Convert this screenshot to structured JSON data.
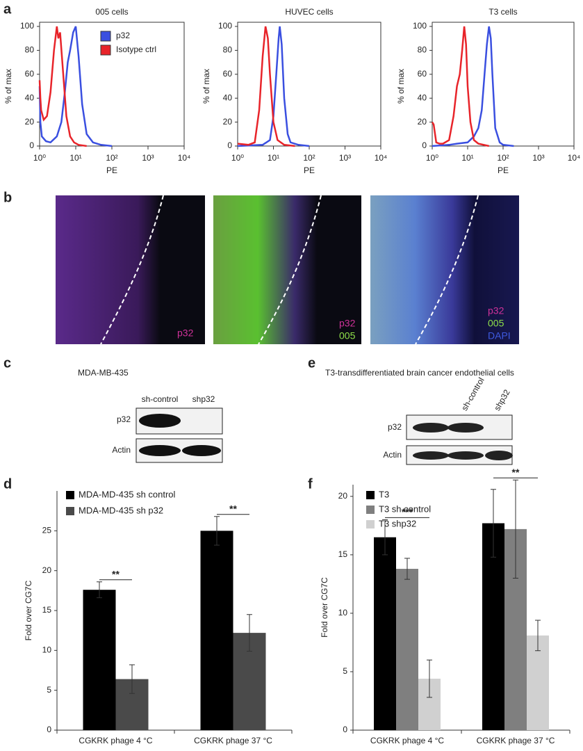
{
  "panel_labels": [
    "a",
    "b",
    "c",
    "d",
    "e",
    "f"
  ],
  "chart_data": [
    {
      "type": "line",
      "title": "005 cells",
      "xlabel": "PE",
      "ylabel": "% of max",
      "xlog": true,
      "xlim": [
        1,
        10000
      ],
      "xticks": [
        {
          "value": 1,
          "label": "10⁰"
        },
        {
          "value": 10,
          "label": "10¹"
        },
        {
          "value": 100,
          "label": "10²"
        },
        {
          "value": 1000,
          "label": "10³"
        },
        {
          "value": 10000,
          "label": "10⁴"
        }
      ],
      "ylim": [
        0,
        100
      ],
      "yticks": [
        0,
        20,
        40,
        60,
        80,
        100
      ],
      "legend": "upper right",
      "series": [
        {
          "name": "p32",
          "color": "#3a4fe0",
          "x": [
            1,
            1.05,
            1.15,
            1.5,
            2,
            3,
            4,
            5,
            6,
            7,
            8.5,
            10,
            12,
            15,
            20,
            30,
            50,
            100
          ],
          "values": [
            50,
            20,
            8,
            4,
            3,
            8,
            20,
            45,
            70,
            80,
            95,
            100,
            75,
            35,
            10,
            3,
            1,
            0
          ]
        },
        {
          "name": "Isotype ctrl",
          "color": "#e8242a",
          "x": [
            1,
            1.05,
            1.1,
            1.3,
            1.6,
            2,
            2.5,
            3,
            3.3,
            3.7,
            4.5,
            5.5,
            7,
            9,
            12,
            20
          ],
          "values": [
            55,
            40,
            30,
            22,
            25,
            45,
            80,
            100,
            90,
            95,
            60,
            25,
            8,
            3,
            1,
            0
          ]
        }
      ]
    },
    {
      "type": "line",
      "title": "HUVEC cells",
      "xlabel": "PE",
      "ylabel": "% of max",
      "xlog": true,
      "xlim": [
        1,
        10000
      ],
      "xticks": [
        {
          "value": 1,
          "label": "10⁰"
        },
        {
          "value": 10,
          "label": "10¹"
        },
        {
          "value": 100,
          "label": "10²"
        },
        {
          "value": 1000,
          "label": "10³"
        },
        {
          "value": 10000,
          "label": "10⁴"
        }
      ],
      "ylim": [
        0,
        100
      ],
      "yticks": [
        0,
        20,
        40,
        60,
        80,
        100
      ],
      "series": [
        {
          "color": "#3a4fe0",
          "x": [
            1,
            5,
            8,
            10,
            12,
            14,
            15,
            17,
            20,
            25,
            30,
            50,
            100
          ],
          "values": [
            0,
            1,
            5,
            25,
            60,
            90,
            100,
            85,
            40,
            10,
            3,
            1,
            0
          ]
        },
        {
          "color": "#e8242a",
          "x": [
            1,
            2,
            3,
            4,
            5,
            6,
            7,
            8,
            10,
            13,
            20,
            40
          ],
          "values": [
            2,
            1,
            3,
            30,
            75,
            100,
            90,
            60,
            20,
            5,
            1,
            0
          ]
        }
      ]
    },
    {
      "type": "line",
      "title": "T3 cells",
      "xlabel": "PE",
      "ylabel": "% of max",
      "xlog": true,
      "xlim": [
        1,
        10000
      ],
      "xticks": [
        {
          "value": 1,
          "label": "10⁰"
        },
        {
          "value": 10,
          "label": "10¹"
        },
        {
          "value": 100,
          "label": "10²"
        },
        {
          "value": 1000,
          "label": "10³"
        },
        {
          "value": 10000,
          "label": "10⁴"
        }
      ],
      "ylim": [
        0,
        100
      ],
      "yticks": [
        0,
        20,
        40,
        60,
        80,
        100
      ],
      "series": [
        {
          "color": "#3a4fe0",
          "x": [
            1,
            3,
            5,
            10,
            15,
            20,
            25,
            30,
            35,
            40,
            45,
            50,
            60,
            80,
            100,
            200
          ],
          "values": [
            0,
            1,
            2,
            3,
            8,
            15,
            30,
            60,
            85,
            100,
            90,
            60,
            15,
            3,
            1,
            0
          ]
        },
        {
          "color": "#e8242a",
          "x": [
            1,
            1.1,
            1.3,
            1.6,
            2,
            3,
            4,
            5,
            6,
            7,
            8,
            9,
            10,
            12,
            15,
            20,
            40
          ],
          "values": [
            20,
            18,
            3,
            2,
            2,
            5,
            25,
            50,
            60,
            80,
            100,
            85,
            50,
            20,
            5,
            2,
            0
          ]
        }
      ]
    },
    {
      "type": "bar",
      "ylabel": "Fold over CG7C",
      "categories": [
        "CGKRK phage 4 °C",
        "CGKRK phage 37 °C"
      ],
      "ylim": [
        0,
        30
      ],
      "yticks": [
        0,
        5,
        10,
        15,
        20,
        25
      ],
      "legend": "upper left",
      "series": [
        {
          "name": "MDA-MD-435 sh control",
          "color": "#000000",
          "values": [
            17.6,
            25
          ],
          "errors": [
            1,
            1.8
          ]
        },
        {
          "name": "MDA-MD-435 sh p32",
          "color": "#4a4a4a",
          "values": [
            6.4,
            12.2
          ],
          "errors": [
            1.8,
            2.3
          ]
        }
      ],
      "annotations": [
        "**",
        "**"
      ]
    },
    {
      "type": "bar",
      "ylabel": "Fold over CG7C",
      "categories": [
        "CGKRK phage 4 °C",
        "CGKRK phage 37 °C"
      ],
      "ylim": [
        0,
        21
      ],
      "yticks": [
        0,
        5,
        10,
        15,
        20
      ],
      "legend": "upper left",
      "series": [
        {
          "name": "T3",
          "color": "#000000",
          "values": [
            16.5,
            17.7
          ],
          "errors": [
            1.5,
            2.9
          ]
        },
        {
          "name": "T3 sh control",
          "color": "#7f7f7f",
          "values": [
            13.8,
            17.2
          ],
          "errors": [
            0.9,
            4.2
          ]
        },
        {
          "name": "T3 shp32",
          "color": "#d0d0d0",
          "values": [
            4.4,
            8.1
          ],
          "errors": [
            1.6,
            1.3
          ]
        }
      ],
      "annotations": [
        "***",
        "**"
      ]
    }
  ],
  "images": [
    {
      "labels": [
        "p32"
      ]
    },
    {
      "labels": [
        "p32",
        "005"
      ]
    },
    {
      "labels": [
        "p32",
        "005",
        "DAPI"
      ]
    }
  ],
  "blot_c": {
    "title": "MDA-MB-435",
    "lanes": [
      "sh-control",
      "shp32"
    ],
    "rows": [
      "p32",
      "Actin"
    ]
  },
  "blot_e": {
    "title": "T3-transdifferentiated brain cancer endothelial cells",
    "lanes": [
      "sh-control",
      "shp32"
    ],
    "rows": [
      "p32",
      "Actin"
    ]
  }
}
